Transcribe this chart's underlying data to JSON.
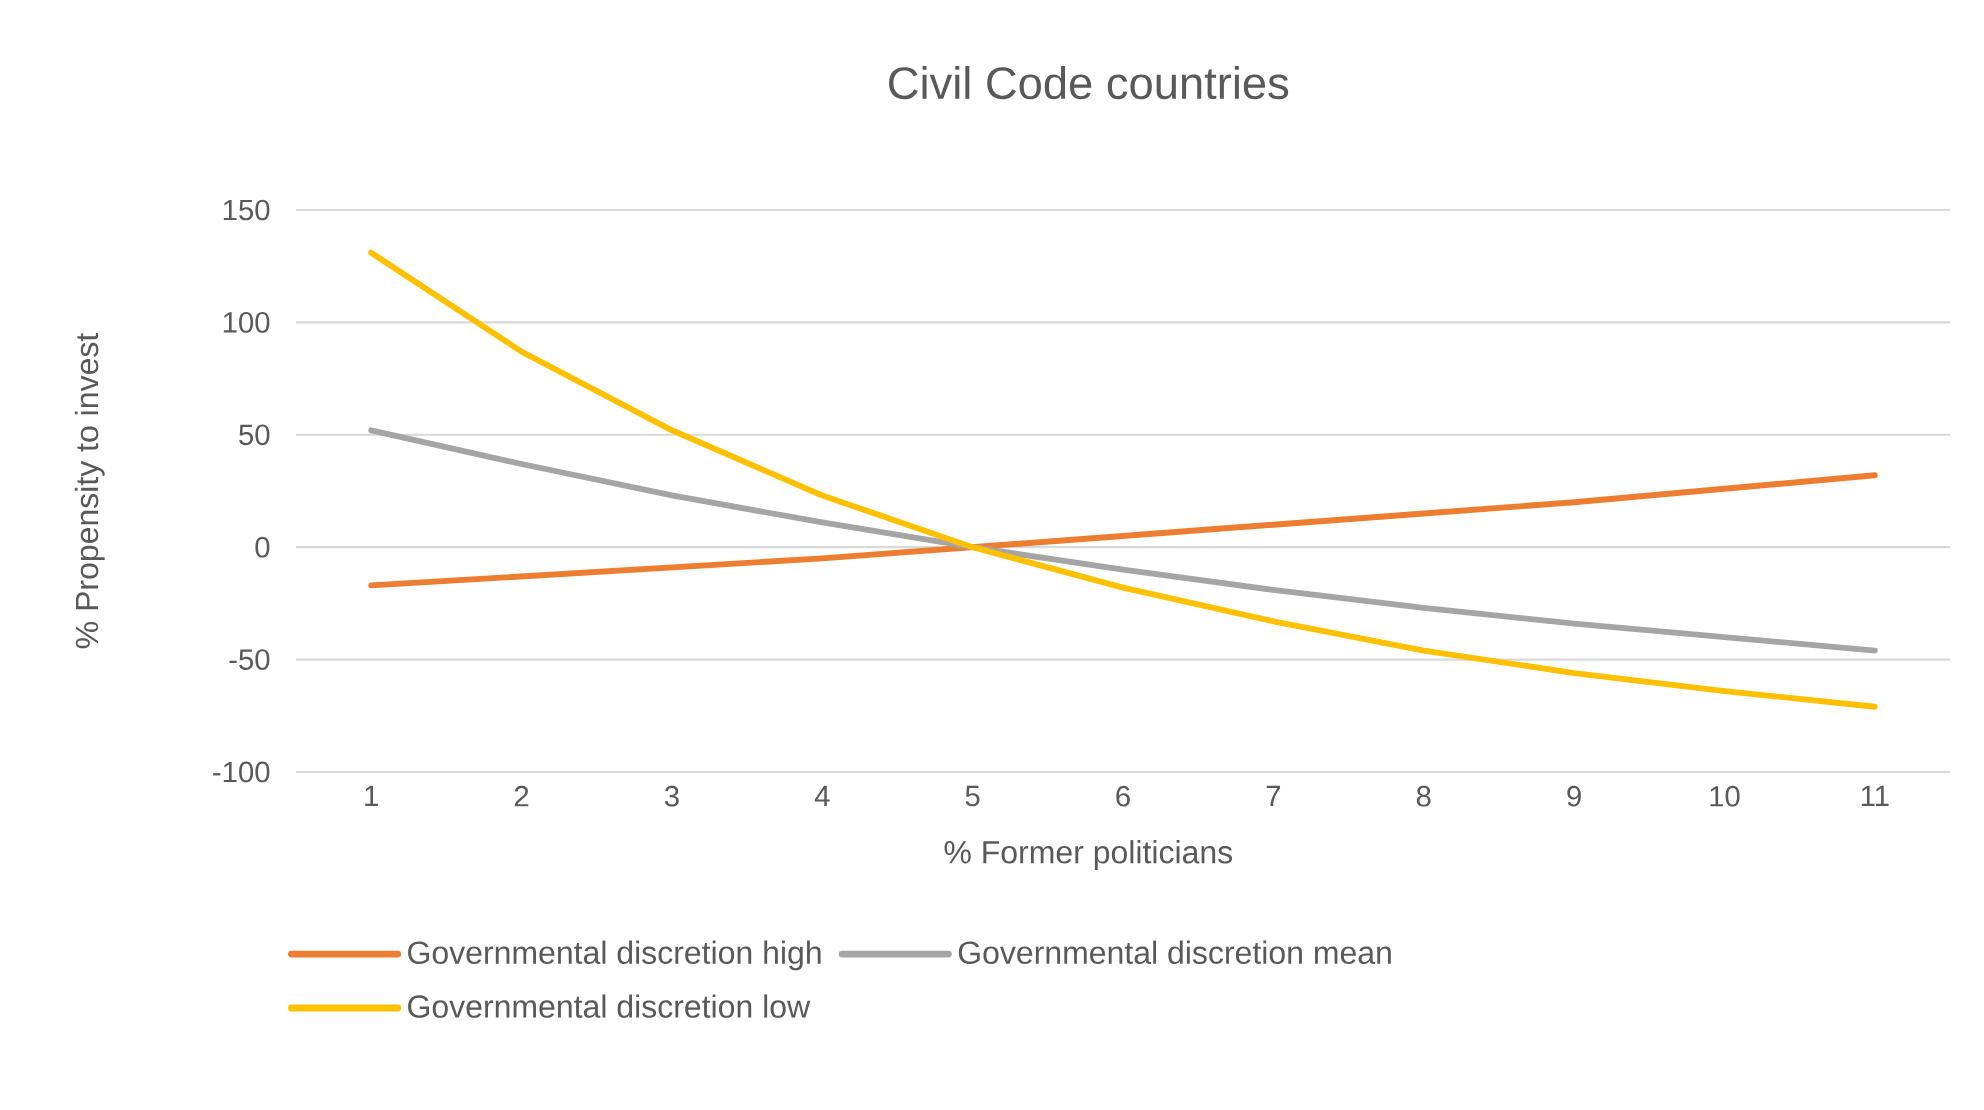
{
  "chart_data": {
    "type": "line",
    "title": "Civil Code countries",
    "xlabel": "% Former politicians",
    "ylabel": "% Propensity to invest",
    "categories": [
      "1",
      "2",
      "3",
      "4",
      "5",
      "6",
      "7",
      "8",
      "9",
      "10",
      "11"
    ],
    "series": [
      {
        "name": "Governmental discretion high",
        "color": "#ed7d31",
        "values": [
          -17,
          -13,
          -9,
          -5,
          0,
          5,
          10,
          15,
          20,
          26,
          32
        ]
      },
      {
        "name": "Governmental discretion mean",
        "color": "#a5a5a5",
        "values": [
          52,
          37,
          23,
          11,
          0,
          -10,
          -19,
          -27,
          -34,
          -40,
          -46
        ]
      },
      {
        "name": "Governmental discretion low",
        "color": "#ffc000",
        "values": [
          131,
          87,
          52,
          23,
          0,
          -18,
          -33,
          -46,
          -56,
          -64,
          -71
        ]
      }
    ],
    "ylim": [
      -100,
      150
    ],
    "yticks": [
      -100,
      -50,
      0,
      50,
      100,
      150
    ],
    "grid": "y",
    "legend": "bottom",
    "marker": "none",
    "line_style": "solid"
  }
}
